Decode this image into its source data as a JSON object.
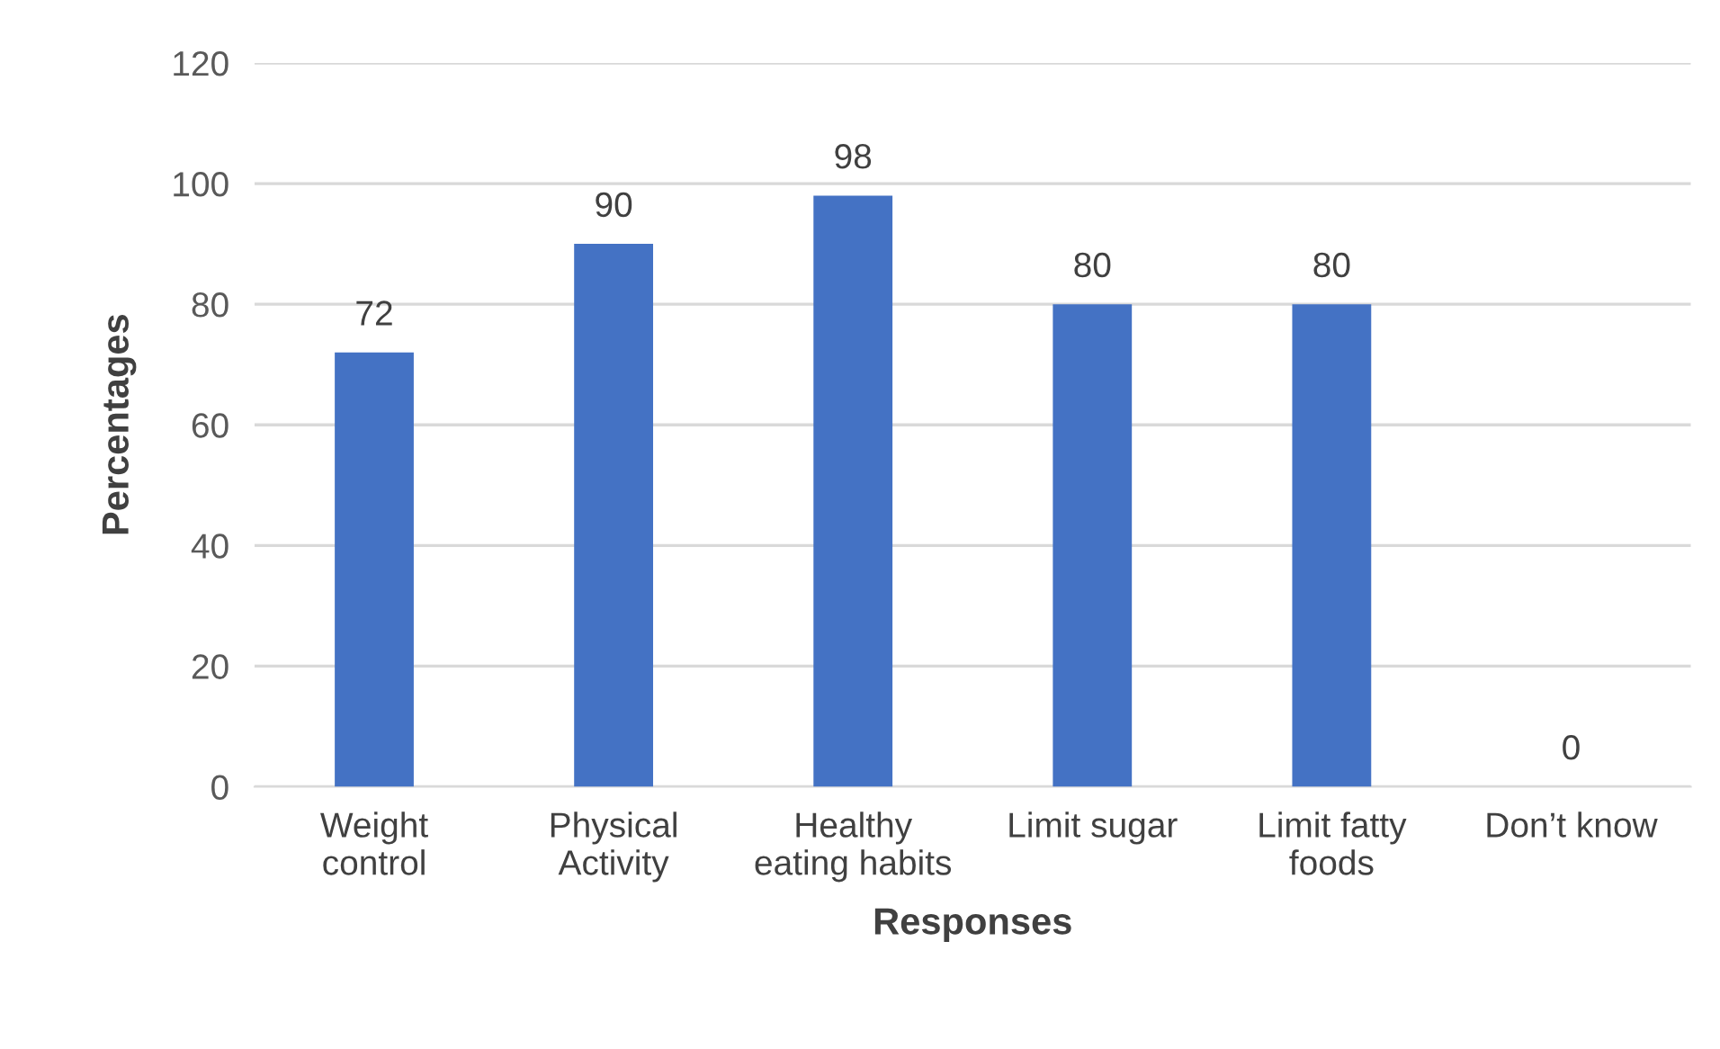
{
  "chart_data": {
    "type": "bar",
    "xlabel": "Responses",
    "ylabel": "Percentages",
    "categories": [
      "Weight\ncontrol",
      "Physical\nActivity",
      "Healthy\neating habits",
      "Limit sugar",
      "Limit fatty\nfoods",
      "Don’t know"
    ],
    "values": [
      72,
      90,
      98,
      80,
      80,
      0
    ],
    "color": "#4472c4",
    "ylim": [
      0,
      120
    ],
    "yticks": [
      0,
      20,
      40,
      60,
      80,
      100,
      120
    ],
    "grid": "y",
    "data_labels": true
  }
}
